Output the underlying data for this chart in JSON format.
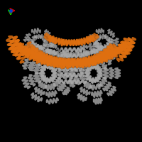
{
  "background_color": "#000000",
  "fig_width": 2.0,
  "fig_height": 2.0,
  "dpi": 100,
  "orange_color": "#E07010",
  "gray_color": "#A8A8A8",
  "axis_x_color": "#CC0000",
  "axis_y_color": "#00CC00",
  "axis_z_color": "#0044CC"
}
